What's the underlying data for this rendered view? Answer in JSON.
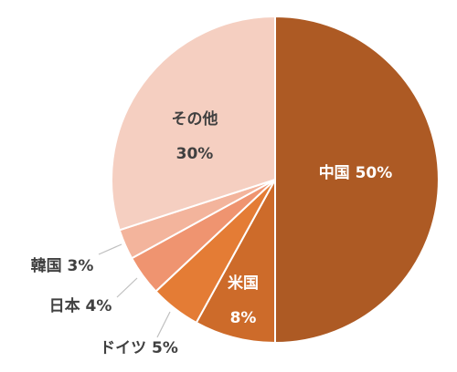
{
  "chart_data": {
    "type": "pie",
    "start": "12 o'clock",
    "direction": "clockwise",
    "slices": [
      {
        "label": "中国",
        "value": 50,
        "value_text": "50%",
        "color": "#ad5a24",
        "label_color": "#ffffff",
        "label_style": "inline"
      },
      {
        "label": "米国",
        "value": 8,
        "value_text": "8%",
        "color": "#cd6b2a",
        "label_color": "#ffffff",
        "label_style": "stacked"
      },
      {
        "label": "ドイツ",
        "value": 5,
        "value_text": "5%",
        "color": "#e47c35",
        "label_color": "#404040",
        "label_style": "leader"
      },
      {
        "label": "日本",
        "value": 4,
        "value_text": "4%",
        "color": "#ef9470",
        "label_color": "#404040",
        "label_style": "leader"
      },
      {
        "label": "韓国",
        "value": 3,
        "value_text": "3%",
        "color": "#f3b49c",
        "label_color": "#404040",
        "label_style": "leader"
      },
      {
        "label": "その他",
        "value": 30,
        "value_text": "30%",
        "color": "#f5cfc1",
        "label_color": "#404040",
        "label_style": "stacked"
      }
    ],
    "leader_line_color": "#bfbfbf",
    "slice_border_color": "#ffffff"
  }
}
